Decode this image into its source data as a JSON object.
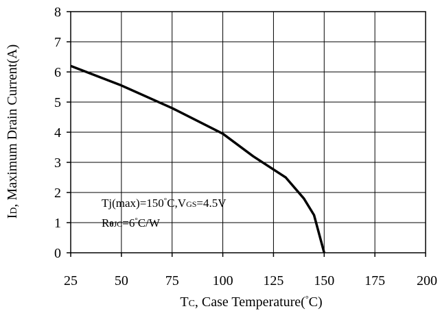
{
  "chart_data": {
    "type": "line",
    "xlabel": {
      "symbol": "T",
      "subscript": "C",
      "text": ", Case Temperature(",
      "degree": "°",
      "unit": "C)"
    },
    "ylabel": {
      "symbol": "I",
      "subscript": "D",
      "text": ", Maximum Drain Current(A)"
    },
    "xlim": [
      25,
      200
    ],
    "ylim": [
      0,
      8
    ],
    "x_ticks": [
      "25",
      "50",
      "75",
      "100",
      "125",
      "150",
      "175",
      "200"
    ],
    "y_ticks": [
      "0",
      "1",
      "2",
      "3",
      "4",
      "5",
      "6",
      "7",
      "8"
    ],
    "grid": true,
    "series": [
      {
        "color": "#000000",
        "points": [
          {
            "x": 25,
            "y": 6.2
          },
          {
            "x": 50,
            "y": 5.55
          },
          {
            "x": 75,
            "y": 4.8
          },
          {
            "x": 100,
            "y": 3.95
          },
          {
            "x": 115,
            "y": 3.2
          },
          {
            "x": 131,
            "y": 2.5
          },
          {
            "x": 140,
            "y": 1.8
          },
          {
            "x": 145,
            "y": 1.25
          },
          {
            "x": 150,
            "y": 0
          }
        ]
      }
    ],
    "annotations": {
      "line1": {
        "a": "Tj(max)=150",
        "degree": "°",
        "b": "C,V",
        "sub": "GS",
        "c": "=4.5V"
      },
      "line2": {
        "a": "R",
        "theta": "θ",
        "sub": "JC",
        "b": "=6",
        "degree": "°",
        "c": "C/W"
      }
    }
  }
}
